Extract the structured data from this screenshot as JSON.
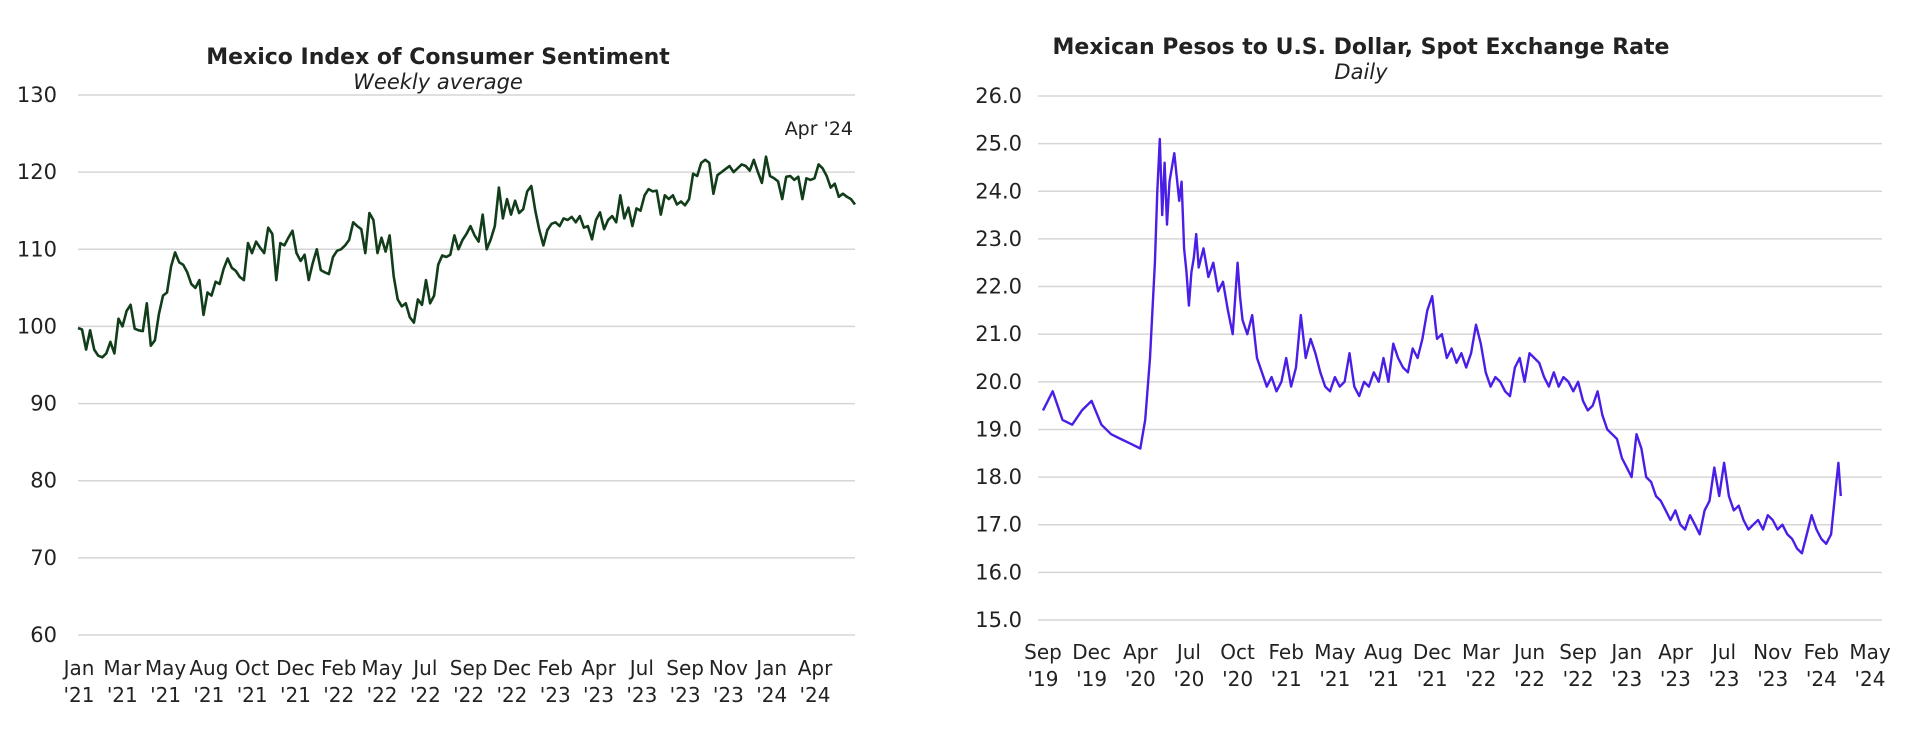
{
  "chart_data": [
    {
      "type": "line",
      "title": "Mexico Index of Consumer Sentiment",
      "subtitle": "Weekly average",
      "ylim": [
        60,
        130
      ],
      "yticks": [
        "60",
        "70",
        "80",
        "90",
        "100",
        "110",
        "120",
        "130"
      ],
      "xtick_labels": [
        [
          "Jan",
          "'21"
        ],
        [
          "Mar",
          "'21"
        ],
        [
          "May",
          "'21"
        ],
        [
          "Aug",
          "'21"
        ],
        [
          "Oct",
          "'21"
        ],
        [
          "Dec",
          "'21"
        ],
        [
          "Feb",
          "'22"
        ],
        [
          "May",
          "'22"
        ],
        [
          "Jul",
          "'22"
        ],
        [
          "Sep",
          "'22"
        ],
        [
          "Dec",
          "'22"
        ],
        [
          "Feb",
          "'23"
        ],
        [
          "Apr",
          "'23"
        ],
        [
          "Jul",
          "'23"
        ],
        [
          "Sep",
          "'23"
        ],
        [
          "Nov",
          "'23"
        ],
        [
          "Jan",
          "'24"
        ],
        [
          "Apr",
          "'24"
        ]
      ],
      "annotation": "Apr '24",
      "grid": true,
      "color": "#123d1a",
      "series": [
        {
          "values": [
            99.8,
            99.6,
            97.0,
            99.5,
            97.0,
            96.2,
            96.0,
            96.5,
            98.0,
            96.5,
            101.0,
            100.0,
            102.0,
            102.8,
            99.7,
            99.5,
            99.4,
            103.0,
            97.5,
            98.2,
            101.6,
            104.0,
            104.4,
            107.8,
            109.6,
            108.3,
            108.0,
            107.0,
            105.5,
            105.0,
            106.0,
            101.5,
            104.4,
            104.0,
            105.8,
            105.5,
            107.5,
            108.8,
            107.6,
            107.2,
            106.4,
            106.0,
            110.8,
            109.5,
            111.0,
            110.2,
            109.5,
            112.8,
            112.0,
            106.0,
            110.8,
            110.5,
            111.5,
            112.4,
            109.5,
            108.5,
            109.3,
            106.0,
            108.2,
            110.0,
            107.3,
            107.0,
            106.8,
            109.0,
            109.8,
            110.0,
            110.5,
            111.2,
            113.5,
            113.0,
            112.6,
            109.5,
            114.7,
            113.8,
            109.5,
            111.5,
            109.7,
            111.8,
            106.5,
            103.5,
            102.6,
            103.0,
            101.2,
            100.5,
            103.5,
            102.8,
            106.0,
            103.0,
            104.0,
            108.0,
            109.2,
            109.0,
            109.3,
            111.8,
            110.0,
            111.2,
            112.0,
            113.0,
            111.8,
            111.0,
            114.5,
            110.0,
            111.3,
            113.0,
            118.0,
            114.0,
            116.5,
            114.5,
            116.3,
            114.7,
            115.2,
            117.5,
            118.2,
            115.0,
            112.5,
            110.5,
            112.5,
            113.3,
            113.5,
            113.0,
            114.0,
            113.8,
            114.2,
            113.5,
            114.3,
            112.8,
            113.0,
            111.3,
            113.8,
            114.8,
            112.6,
            113.8,
            114.3,
            113.5,
            117.0,
            114.0,
            115.4,
            113.0,
            115.3,
            115.0,
            117.0,
            117.8,
            117.5,
            117.6,
            114.5,
            117.0,
            116.5,
            117.0,
            115.8,
            116.2,
            115.7,
            116.5,
            119.8,
            119.5,
            121.2,
            121.6,
            121.2,
            117.2,
            119.6,
            120.0,
            120.4,
            120.8,
            120.0,
            120.5,
            121.0,
            120.8,
            120.2,
            121.6,
            120.0,
            118.6,
            122.0,
            119.5,
            119.2,
            118.8,
            116.5,
            119.4,
            119.5,
            119.0,
            119.4,
            116.5,
            119.2,
            119.0,
            119.2,
            121.0,
            120.5,
            119.5,
            118.0,
            118.5,
            116.8,
            117.2,
            116.8,
            116.5,
            115.8
          ]
        }
      ]
    },
    {
      "type": "line",
      "title": "Mexican Pesos to U.S. Dollar, Spot Exchange Rate",
      "subtitle": "Daily",
      "ylim": [
        15.0,
        26.0
      ],
      "yticks": [
        "15.0",
        "16.0",
        "17.0",
        "18.0",
        "19.0",
        "20.0",
        "21.0",
        "22.0",
        "23.0",
        "24.0",
        "25.0",
        "26.0"
      ],
      "xtick_labels": [
        [
          "Sep",
          "'19"
        ],
        [
          "Dec",
          "'19"
        ],
        [
          "Apr",
          "'20"
        ],
        [
          "Jul",
          "'20"
        ],
        [
          "Oct",
          "'20"
        ],
        [
          "Feb",
          "'21"
        ],
        [
          "May",
          "'21"
        ],
        [
          "Aug",
          "'21"
        ],
        [
          "Dec",
          "'21"
        ],
        [
          "Mar",
          "'22"
        ],
        [
          "Jun",
          "'22"
        ],
        [
          "Sep",
          "'22"
        ],
        [
          "Jan",
          "'23"
        ],
        [
          "Apr",
          "'23"
        ],
        [
          "Jul",
          "'23"
        ],
        [
          "Nov",
          "'23"
        ],
        [
          "Feb",
          "'24"
        ],
        [
          "May",
          "'24"
        ]
      ],
      "grid": true,
      "color": "#4a1ee6",
      "series": [
        {
          "x_range": [
            0,
            17
          ],
          "values": [
            [
              0.0,
              19.4
            ],
            [
              0.2,
              19.8
            ],
            [
              0.4,
              19.2
            ],
            [
              0.6,
              19.1
            ],
            [
              0.8,
              19.4
            ],
            [
              1.0,
              19.6
            ],
            [
              1.2,
              19.1
            ],
            [
              1.4,
              18.9
            ],
            [
              1.6,
              18.8
            ],
            [
              1.8,
              18.7
            ],
            [
              2.0,
              18.6
            ],
            [
              2.1,
              19.2
            ],
            [
              2.2,
              20.5
            ],
            [
              2.3,
              22.5
            ],
            [
              2.35,
              24.0
            ],
            [
              2.4,
              25.1
            ],
            [
              2.45,
              23.5
            ],
            [
              2.5,
              24.6
            ],
            [
              2.55,
              23.3
            ],
            [
              2.6,
              24.2
            ],
            [
              2.7,
              24.8
            ],
            [
              2.8,
              23.8
            ],
            [
              2.85,
              24.2
            ],
            [
              2.9,
              22.8
            ],
            [
              2.95,
              22.3
            ],
            [
              3.0,
              21.6
            ],
            [
              3.05,
              22.3
            ],
            [
              3.1,
              22.6
            ],
            [
              3.15,
              23.1
            ],
            [
              3.2,
              22.4
            ],
            [
              3.3,
              22.8
            ],
            [
              3.4,
              22.2
            ],
            [
              3.5,
              22.5
            ],
            [
              3.6,
              21.9
            ],
            [
              3.7,
              22.1
            ],
            [
              3.8,
              21.5
            ],
            [
              3.9,
              21.0
            ],
            [
              4.0,
              22.5
            ],
            [
              4.05,
              21.8
            ],
            [
              4.1,
              21.3
            ],
            [
              4.2,
              21.0
            ],
            [
              4.3,
              21.4
            ],
            [
              4.4,
              20.5
            ],
            [
              4.5,
              20.2
            ],
            [
              4.6,
              19.9
            ],
            [
              4.7,
              20.1
            ],
            [
              4.8,
              19.8
            ],
            [
              4.9,
              20.0
            ],
            [
              5.0,
              20.5
            ],
            [
              5.1,
              19.9
            ],
            [
              5.2,
              20.3
            ],
            [
              5.3,
              21.4
            ],
            [
              5.4,
              20.5
            ],
            [
              5.5,
              20.9
            ],
            [
              5.6,
              20.6
            ],
            [
              5.7,
              20.2
            ],
            [
              5.8,
              19.9
            ],
            [
              5.9,
              19.8
            ],
            [
              6.0,
              20.1
            ],
            [
              6.1,
              19.9
            ],
            [
              6.2,
              20.0
            ],
            [
              6.3,
              20.6
            ],
            [
              6.4,
              19.9
            ],
            [
              6.5,
              19.7
            ],
            [
              6.6,
              20.0
            ],
            [
              6.7,
              19.9
            ],
            [
              6.8,
              20.2
            ],
            [
              6.9,
              20.0
            ],
            [
              7.0,
              20.5
            ],
            [
              7.1,
              20.0
            ],
            [
              7.2,
              20.8
            ],
            [
              7.3,
              20.5
            ],
            [
              7.4,
              20.3
            ],
            [
              7.5,
              20.2
            ],
            [
              7.6,
              20.7
            ],
            [
              7.7,
              20.5
            ],
            [
              7.8,
              20.9
            ],
            [
              7.9,
              21.5
            ],
            [
              8.0,
              21.8
            ],
            [
              8.1,
              20.9
            ],
            [
              8.2,
              21.0
            ],
            [
              8.3,
              20.5
            ],
            [
              8.4,
              20.7
            ],
            [
              8.5,
              20.4
            ],
            [
              8.6,
              20.6
            ],
            [
              8.7,
              20.3
            ],
            [
              8.8,
              20.6
            ],
            [
              8.9,
              21.2
            ],
            [
              9.0,
              20.8
            ],
            [
              9.1,
              20.2
            ],
            [
              9.2,
              19.9
            ],
            [
              9.3,
              20.1
            ],
            [
              9.4,
              20.0
            ],
            [
              9.5,
              19.8
            ],
            [
              9.6,
              19.7
            ],
            [
              9.7,
              20.3
            ],
            [
              9.8,
              20.5
            ],
            [
              9.9,
              20.0
            ],
            [
              10.0,
              20.6
            ],
            [
              10.1,
              20.5
            ],
            [
              10.2,
              20.4
            ],
            [
              10.3,
              20.1
            ],
            [
              10.4,
              19.9
            ],
            [
              10.5,
              20.2
            ],
            [
              10.6,
              19.9
            ],
            [
              10.7,
              20.1
            ],
            [
              10.8,
              20.0
            ],
            [
              10.9,
              19.8
            ],
            [
              11.0,
              20.0
            ],
            [
              11.1,
              19.6
            ],
            [
              11.2,
              19.4
            ],
            [
              11.3,
              19.5
            ],
            [
              11.4,
              19.8
            ],
            [
              11.5,
              19.3
            ],
            [
              11.6,
              19.0
            ],
            [
              11.7,
              18.9
            ],
            [
              11.8,
              18.8
            ],
            [
              11.9,
              18.4
            ],
            [
              12.0,
              18.2
            ],
            [
              12.1,
              18.0
            ],
            [
              12.2,
              18.9
            ],
            [
              12.3,
              18.6
            ],
            [
              12.4,
              18.0
            ],
            [
              12.5,
              17.9
            ],
            [
              12.6,
              17.6
            ],
            [
              12.7,
              17.5
            ],
            [
              12.8,
              17.3
            ],
            [
              12.9,
              17.1
            ],
            [
              13.0,
              17.3
            ],
            [
              13.1,
              17.0
            ],
            [
              13.2,
              16.9
            ],
            [
              13.3,
              17.2
            ],
            [
              13.4,
              17.0
            ],
            [
              13.5,
              16.8
            ],
            [
              13.6,
              17.3
            ],
            [
              13.7,
              17.5
            ],
            [
              13.8,
              18.2
            ],
            [
              13.9,
              17.6
            ],
            [
              14.0,
              18.3
            ],
            [
              14.1,
              17.6
            ],
            [
              14.2,
              17.3
            ],
            [
              14.3,
              17.4
            ],
            [
              14.4,
              17.1
            ],
            [
              14.5,
              16.9
            ],
            [
              14.6,
              17.0
            ],
            [
              14.7,
              17.1
            ],
            [
              14.8,
              16.9
            ],
            [
              14.9,
              17.2
            ],
            [
              15.0,
              17.1
            ],
            [
              15.1,
              16.9
            ],
            [
              15.2,
              17.0
            ],
            [
              15.3,
              16.8
            ],
            [
              15.4,
              16.7
            ],
            [
              15.5,
              16.5
            ],
            [
              15.6,
              16.4
            ],
            [
              15.7,
              16.8
            ],
            [
              15.8,
              17.2
            ],
            [
              15.9,
              16.9
            ],
            [
              16.0,
              16.7
            ],
            [
              16.1,
              16.6
            ],
            [
              16.2,
              16.8
            ],
            [
              16.3,
              17.8
            ],
            [
              16.35,
              18.3
            ],
            [
              16.4,
              17.6
            ]
          ]
        }
      ]
    }
  ]
}
